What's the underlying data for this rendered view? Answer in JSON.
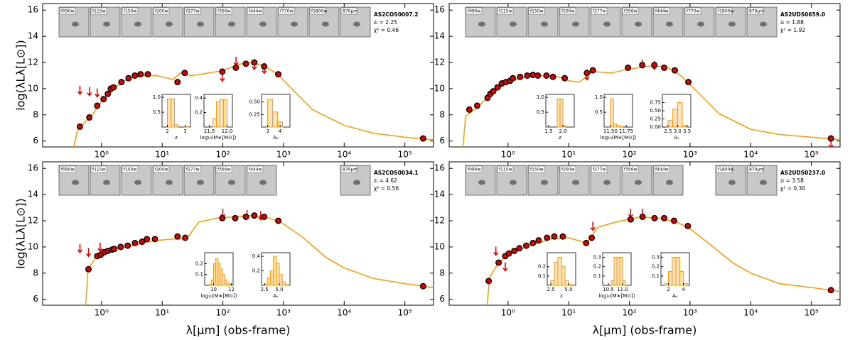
{
  "chart_data": [
    {
      "type": "sed",
      "ylabel": "log(λLλ[L⊙])",
      "xscale": "log",
      "xlim": [
        0.107,
        297000
      ],
      "ylim": [
        5.55,
        16.5
      ],
      "xticks": [
        {
          "value": 1,
          "label": "10⁰"
        },
        {
          "value": 10,
          "label": "10¹"
        },
        {
          "value": 100,
          "label": "10²"
        },
        {
          "value": 1000,
          "label": "10³"
        },
        {
          "value": 10000,
          "label": "10⁴"
        },
        {
          "value": 100000,
          "label": "10⁵"
        }
      ],
      "yticks": [
        6,
        8,
        10,
        12,
        14,
        16
      ],
      "stamps": [
        "f090w",
        "f115w",
        "f150w",
        "f200w",
        "f277w",
        "f356w",
        "f444w",
        "f770w",
        "f1800w",
        "870μm"
      ],
      "annotations": [
        "AS2COS0007.2",
        "zₗ = 2.25",
        "χ² = 0.46"
      ],
      "model": {
        "color": "#ff9900",
        "x": [
          0.35,
          0.4,
          0.5,
          0.7,
          1.0,
          1.5,
          2,
          3,
          5,
          8,
          10,
          15,
          20,
          30,
          60,
          100,
          200,
          300,
          500,
          800,
          1500,
          3000,
          10000,
          30000,
          100000,
          297000
        ],
        "y": [
          5.55,
          6.8,
          7.3,
          8.0,
          9.0,
          9.8,
          10.4,
          10.8,
          11.0,
          11.0,
          10.9,
          10.7,
          11.2,
          11.0,
          11.2,
          11.4,
          11.9,
          12.0,
          11.7,
          11.1,
          9.8,
          8.4,
          7.2,
          6.6,
          6.3,
          6.1
        ]
      },
      "detections": {
        "color": "#e00000",
        "x": [
          0.44,
          0.63,
          0.85,
          1.08,
          1.27,
          1.42,
          1.58,
          2.13,
          2.79,
          3.55,
          4.4,
          5.8,
          17.9,
          23.5,
          98,
          164,
          240,
          330,
          480,
          820,
          200000
        ],
        "y": [
          7.1,
          7.8,
          8.7,
          9.2,
          9.6,
          10.0,
          10.1,
          10.5,
          10.8,
          11.0,
          11.1,
          11.1,
          10.5,
          11.2,
          11.3,
          11.6,
          11.9,
          12.0,
          11.7,
          11.1,
          6.2
        ]
      },
      "upper_limits": {
        "color": "#e00000",
        "x": [
          0.44,
          0.63,
          0.85,
          98,
          165,
          330,
          480
        ],
        "y": [
          9.9,
          9.8,
          9.7,
          10.9,
          12.1,
          11.8,
          11.5
        ]
      },
      "insets": [
        {
          "xlabel": "z",
          "bins": [
            1.8,
            2.0,
            2.2,
            2.4,
            2.6,
            2.8,
            3.0,
            3.2
          ],
          "counts": [
            0,
            0.95,
            0.95,
            0.08,
            0,
            0,
            0.02
          ],
          "xlim": [
            1.7,
            3.3
          ],
          "ylim": [
            0,
            1.1
          ],
          "xticks": [
            2,
            3
          ],
          "yticks": [
            0.5,
            {
              "value": 1,
              "label": "1.0"
            }
          ]
        },
        {
          "xlabel": "log₁₀(M∗[M⊙])",
          "bins": [
            11.4,
            11.5,
            11.6,
            11.7,
            11.8,
            11.9,
            12.0,
            12.1
          ],
          "counts": [
            0,
            0,
            0.12,
            0.35,
            0.38,
            0.38,
            0
          ],
          "xlim": [
            11.35,
            12.15
          ],
          "ylim": [
            0,
            0.45
          ],
          "xticks": [
            11.5,
            {
              "value": 12,
              "label": "12.0"
            }
          ],
          "yticks": [
            0.2,
            0.4
          ]
        },
        {
          "xlabel": "Aᵥ",
          "bins": [
            2.6,
            3.0,
            3.4,
            3.8,
            4.2,
            4.6
          ],
          "counts": [
            0,
            0.55,
            0.3,
            0.1,
            0
          ],
          "xlim": [
            2.5,
            4.8
          ],
          "ylim": [
            0,
            0.65
          ],
          "xticks": [
            3,
            4
          ],
          "yticks": [
            0.25,
            {
              "value": 0.5,
              "label": "0.50"
            }
          ]
        }
      ]
    },
    {
      "type": "sed",
      "xscale": "log",
      "xlim": [
        0.107,
        297000
      ],
      "ylim": [
        5.55,
        16.5
      ],
      "xticks": [
        {
          "value": 1,
          "label": "10⁰"
        },
        {
          "value": 10,
          "label": "10¹"
        },
        {
          "value": 100,
          "label": "10²"
        },
        {
          "value": 1000,
          "label": "10³"
        },
        {
          "value": 10000,
          "label": "10⁴"
        },
        {
          "value": 100000,
          "label": "10⁵"
        }
      ],
      "yticks": [
        6,
        8,
        10,
        12,
        14,
        16
      ],
      "stamps": [
        "f090w",
        "f115w",
        "f150w",
        "f200w",
        "f277w",
        "f356w",
        "f444w",
        "f770w",
        "f1800w",
        "870μm"
      ],
      "annotations": [
        "AS2UDS0659.0",
        "zₗ = 1.88",
        "χ² = 1.92"
      ],
      "model": {
        "color": "#ff9900",
        "x": [
          0.18,
          0.2,
          0.3,
          0.5,
          1,
          2,
          4,
          7,
          10,
          15,
          25,
          50,
          100,
          200,
          400,
          700,
          1500,
          3000,
          10000,
          30000,
          100000,
          297000
        ],
        "y": [
          5.55,
          7.9,
          8.5,
          9.5,
          10.5,
          10.9,
          11.0,
          10.9,
          10.6,
          10.5,
          11.3,
          11.2,
          11.5,
          11.7,
          11.7,
          11.0,
          9.5,
          8.1,
          6.9,
          6.5,
          6.3,
          6.1
        ]
      },
      "detections": {
        "color": "#e00000",
        "x": [
          0.23,
          0.31,
          0.46,
          0.51,
          0.57,
          0.67,
          0.79,
          0.92,
          1.08,
          1.2,
          1.58,
          2.07,
          2.57,
          3.1,
          4.3,
          5.5,
          8.6,
          20,
          25,
          95,
          163,
          258,
          375,
          560,
          940,
          210000
        ],
        "y": [
          8.4,
          8.7,
          9.3,
          9.6,
          9.8,
          10.1,
          10.4,
          10.5,
          10.6,
          10.8,
          10.9,
          11.0,
          11.05,
          11.0,
          11.0,
          10.9,
          10.8,
          11.2,
          11.4,
          11.6,
          11.8,
          11.8,
          11.6,
          11.4,
          10.5,
          6.2
        ]
      },
      "upper_limits": {
        "color": "#e00000",
        "x": [
          20,
          163,
          258,
          210000
        ],
        "y": [
          11.0,
          11.9,
          11.8,
          5.8
        ]
      },
      "insets": [
        {
          "xlabel": "z",
          "bins": [
            1.6,
            1.8,
            1.9,
            2.0,
            2.1,
            2.3
          ],
          "counts": [
            0,
            0.95,
            0.95,
            0.05,
            0
          ],
          "xlim": [
            1.4,
            2.4
          ],
          "ylim": [
            0,
            1.1
          ],
          "xticks": [
            1.5,
            {
              "value": 2,
              "label": "2.0"
            }
          ],
          "yticks": [
            0.5,
            {
              "value": 1,
              "label": "1.0"
            }
          ]
        },
        {
          "xlabel": "log₁₀(M∗[M⊙])",
          "bins": [
            11.45,
            11.5,
            11.55,
            11.6,
            11.65,
            11.7,
            11.8
          ],
          "counts": [
            0,
            0.95,
            0.1,
            0.05,
            0.02,
            0
          ],
          "xlim": [
            11.4,
            11.85
          ],
          "ylim": [
            0,
            1.1
          ],
          "xticks": [
            {
              "value": 11.5,
              "label": "11.50"
            },
            11.75
          ],
          "yticks": [
            0.5,
            {
              "value": 1,
              "label": "1.0"
            }
          ]
        },
        {
          "xlabel": "Aᵥ",
          "bins": [
            2.5,
            2.75,
            3.0,
            3.25,
            3.5
          ],
          "counts": [
            0.2,
            0.55,
            0.75,
            0.05
          ],
          "xlim": [
            2.2,
            3.7
          ],
          "ylim": [
            0,
            1.0
          ],
          "xticks": [
            2.5,
            {
              "value": 3,
              "label": "3.0"
            },
            3.5
          ],
          "yticks": [
            {
              "value": 0,
              "label": "0.00"
            },
            0.25,
            {
              "value": 0.5,
              "label": "0.50"
            },
            0.75
          ]
        }
      ]
    },
    {
      "type": "sed",
      "ylabel": "log(λLλ[L⊙])",
      "xlabel": "λ[μm] (obs-frame)",
      "xscale": "log",
      "xlim": [
        0.107,
        297000
      ],
      "ylim": [
        5.55,
        16.5
      ],
      "xticks": [
        {
          "value": 1,
          "label": "10⁰"
        },
        {
          "value": 10,
          "label": "10¹"
        },
        {
          "value": 100,
          "label": "10²"
        },
        {
          "value": 1000,
          "label": "10³"
        },
        {
          "value": 10000,
          "label": "10⁴"
        },
        {
          "value": 100000,
          "label": "10⁵"
        }
      ],
      "yticks": [
        6,
        8,
        10,
        12,
        14,
        16
      ],
      "stamps": [
        "f090w",
        "f115w",
        "f150w",
        "f200w",
        "f277w",
        "f356w",
        "f444w",
        null,
        null,
        "870μm"
      ],
      "annotations": [
        "AS2COS0034.1",
        "zₗ = 4.62",
        "χ² = 0.56"
      ],
      "model": {
        "color": "#ff9900",
        "x": [
          0.55,
          0.6,
          0.8,
          1,
          2,
          5,
          8,
          15,
          25,
          40,
          80,
          150,
          300,
          500,
          900,
          2000,
          5000,
          10000,
          30000,
          100000,
          297000
        ],
        "y": [
          5.55,
          8.3,
          9.2,
          9.5,
          9.9,
          10.3,
          10.5,
          10.6,
          10.6,
          11.9,
          12.2,
          12.3,
          12.4,
          12.3,
          11.9,
          10.8,
          9.2,
          8.4,
          7.6,
          7.2,
          6.9
        ]
      },
      "detections": {
        "color": "#e00000",
        "x": [
          0.61,
          0.85,
          0.97,
          1.11,
          1.27,
          1.5,
          1.62,
          2.07,
          2.7,
          3.55,
          4.66,
          5.6,
          7.6,
          17.9,
          24,
          98,
          160,
          240,
          330,
          480,
          820,
          200000
        ],
        "y": [
          8.3,
          9.3,
          9.4,
          9.6,
          9.7,
          9.8,
          9.85,
          10.0,
          10.1,
          10.3,
          10.4,
          10.6,
          10.6,
          10.8,
          10.7,
          12.2,
          12.2,
          12.3,
          12.4,
          12.3,
          12.0,
          7.0
        ]
      },
      "upper_limits": {
        "color": "#e00000",
        "x": [
          0.44,
          0.61,
          0.95,
          100,
          250,
          420
        ],
        "y": [
          9.9,
          9.6,
          10.0,
          12.6,
          12.5,
          12.4
        ]
      },
      "insets": [
        {
          "xlabel": "log₁₀(M∗[M⊙])",
          "bins": [
            9.5,
            9.75,
            10.0,
            10.25,
            10.5,
            10.75,
            11.0,
            11.25,
            11.5,
            11.75,
            12.0
          ],
          "counts": [
            0.01,
            0.05,
            0.2,
            0.25,
            0.2,
            0.15,
            0.1,
            0.05,
            0.02,
            0.01
          ],
          "xlim": [
            9,
            12.2
          ],
          "ylim": [
            0,
            0.3
          ],
          "xticks": [
            10,
            12
          ],
          "yticks": [
            0.1,
            0.2
          ]
        },
        {
          "xlabel": "Aᵥ",
          "bins": [
            2.5,
            3,
            3.5,
            4,
            4.5,
            5,
            5.5,
            6,
            6.5
          ],
          "counts": [
            0.02,
            0.1,
            0.2,
            0.4,
            0.3,
            0.15,
            0.05,
            0.01
          ],
          "xlim": [
            2,
            6.8
          ],
          "ylim": [
            0,
            0.45
          ],
          "xticks": [
            2.5,
            {
              "value": 5,
              "label": "5.0"
            }
          ],
          "yticks": [
            0.2,
            0.4
          ]
        }
      ]
    },
    {
      "type": "sed",
      "xlabel": "λ[μm] (obs-frame)",
      "xscale": "log",
      "xlim": [
        0.107,
        297000
      ],
      "ylim": [
        5.55,
        16.5
      ],
      "xticks": [
        {
          "value": 1,
          "label": "10⁰"
        },
        {
          "value": 10,
          "label": "10¹"
        },
        {
          "value": 100,
          "label": "10²"
        },
        {
          "value": 1000,
          "label": "10³"
        },
        {
          "value": 10000,
          "label": "10⁴"
        },
        {
          "value": 100000,
          "label": "10⁵"
        }
      ],
      "yticks": [
        6,
        8,
        10,
        12,
        14,
        16
      ],
      "stamps": [
        "f090w",
        "f115w",
        "f150w",
        "f200w",
        "f277w",
        "f356w",
        "f444w",
        null,
        "f1800w",
        "870μm"
      ],
      "annotations": [
        "AS2UDS0237.0",
        "zₗ = 3.58",
        "χ² = 0.30"
      ],
      "model": {
        "color": "#ff9900",
        "x": [
          0.45,
          0.5,
          0.7,
          1,
          2,
          5,
          10,
          20,
          30,
          60,
          150,
          300,
          600,
          1000,
          2000,
          5000,
          10000,
          30000,
          100000,
          297000
        ],
        "y": [
          5.55,
          7.7,
          8.8,
          9.4,
          10.0,
          10.6,
          10.7,
          10.3,
          11.5,
          11.9,
          12.3,
          12.2,
          11.9,
          11.4,
          10.3,
          8.8,
          8.0,
          7.2,
          6.9,
          6.6
        ]
      },
      "detections": {
        "color": "#e00000",
        "x": [
          0.48,
          0.7,
          0.9,
          1.03,
          1.27,
          1.54,
          2.0,
          2.57,
          3.2,
          4.4,
          5.8,
          8,
          19.4,
          24,
          105,
          165,
          260,
          375,
          545,
          920,
          210000
        ],
        "y": [
          7.4,
          8.8,
          9.3,
          9.5,
          9.7,
          9.9,
          10.1,
          10.3,
          10.5,
          10.7,
          10.8,
          10.8,
          10.3,
          10.7,
          12.1,
          12.3,
          12.2,
          12.2,
          12.0,
          11.6,
          6.7
        ]
      },
      "upper_limits": {
        "color": "#e00000",
        "x": [
          0.63,
          0.9,
          25,
          105,
          165
        ],
        "y": [
          9.7,
          8.5,
          11.6,
          12.6,
          12.6
        ]
      },
      "insets": [
        {
          "xlabel": "z",
          "bins": [
            2.5,
            3,
            3.5,
            4,
            4.5,
            5,
            5.5
          ],
          "counts": [
            0.05,
            0.25,
            0.3,
            0.2,
            0.05,
            0.01
          ],
          "xlim": [
            2,
            6
          ],
          "ylim": [
            0,
            0.35
          ],
          "xticks": [
            2.5,
            {
              "value": 5,
              "label": "5.0"
            }
          ],
          "yticks": [
            0.1,
            0.2
          ]
        },
        {
          "xlabel": "log₁₀(M∗[M⊙])",
          "bins": [
            10.5,
            10.6,
            10.7,
            10.8,
            10.9,
            11.0,
            11.1,
            11.2
          ],
          "counts": [
            0,
            0.05,
            0.3,
            0.3,
            0.3,
            0.05,
            0
          ],
          "xlim": [
            10.3,
            11.3
          ],
          "ylim": [
            0,
            0.35
          ],
          "xticks": [
            10.5,
            {
              "value": 11,
              "label": "11.0"
            }
          ],
          "yticks": [
            0.1,
            0.2,
            0.3
          ]
        },
        {
          "xlabel": "Aᵥ",
          "bins": [
            1.5,
            2,
            2.5,
            3,
            3.5,
            4,
            4.5
          ],
          "counts": [
            0.02,
            0.15,
            0.3,
            0.3,
            0.15,
            0.02
          ],
          "xlim": [
            1,
            4.8
          ],
          "ylim": [
            0,
            0.35
          ],
          "xticks": [
            2,
            4
          ],
          "yticks": [
            0.1,
            0.2,
            0.3
          ]
        }
      ]
    }
  ]
}
